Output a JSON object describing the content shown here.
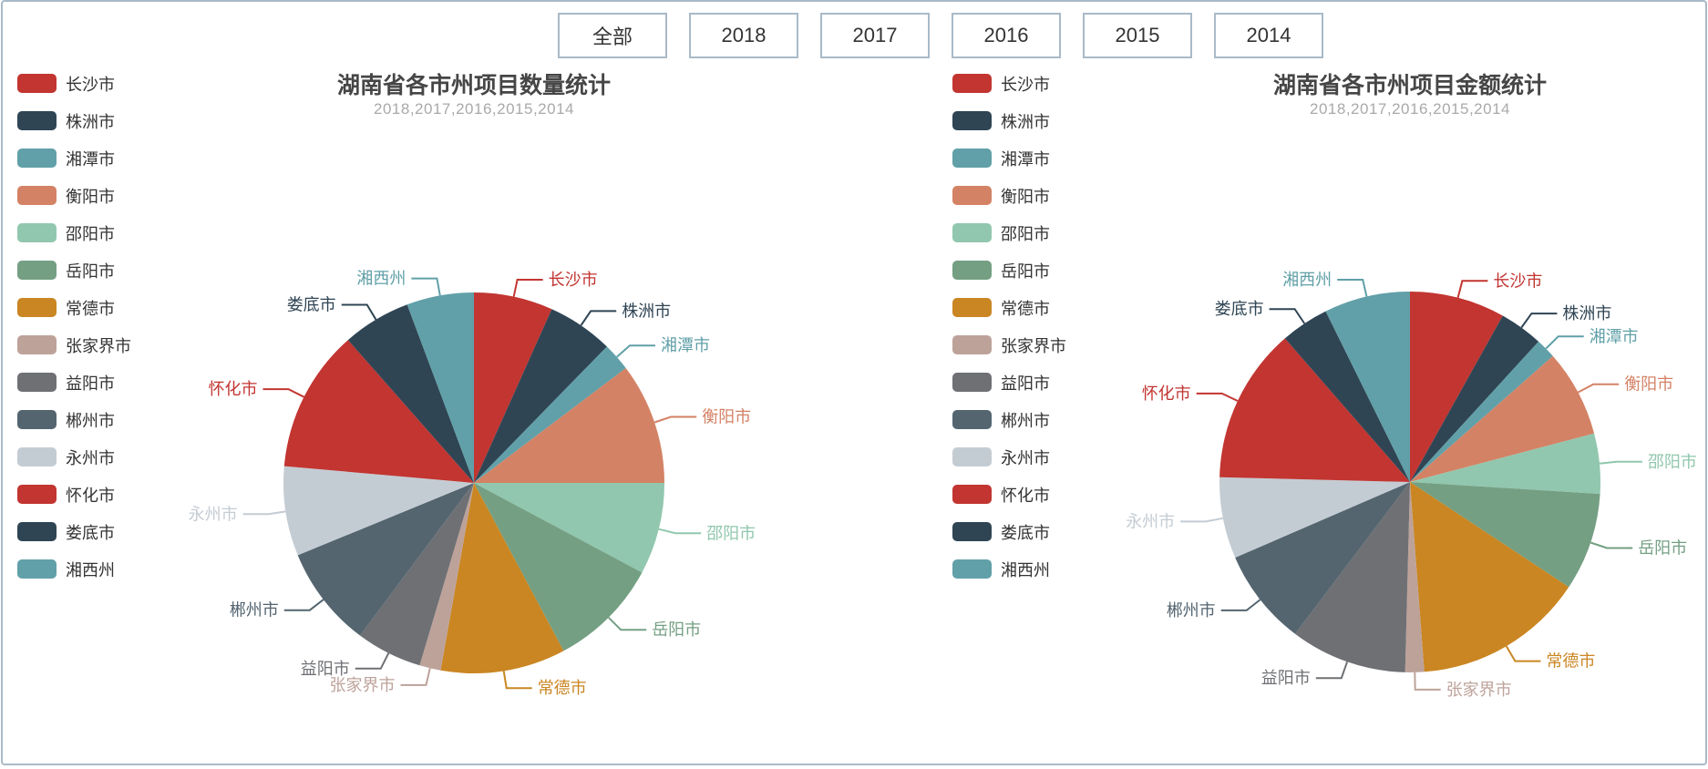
{
  "page": {
    "background": "#ffffff",
    "frame_border_color": "#a9bac8"
  },
  "filters": {
    "buttons": [
      {
        "label": "全部"
      },
      {
        "label": "2018"
      },
      {
        "label": "2017"
      },
      {
        "label": "2016"
      },
      {
        "label": "2015"
      },
      {
        "label": "2014"
      }
    ]
  },
  "legend": {
    "items": [
      "长沙市",
      "株洲市",
      "湘潭市",
      "衡阳市",
      "邵阳市",
      "岳阳市",
      "常德市",
      "张家界市",
      "益阳市",
      "郴州市",
      "永州市",
      "怀化市",
      "娄底市",
      "湘西州"
    ]
  },
  "palette": [
    "#c23531",
    "#2f4554",
    "#61a0a8",
    "#d48265",
    "#91c7ae",
    "#749f83",
    "#ca8622",
    "#bda29a",
    "#6e7074",
    "#546570",
    "#c4ccd3",
    "#c23531",
    "#2f4554",
    "#61a0a8"
  ],
  "chart_data": [
    {
      "type": "pie",
      "title": "湖南省各市州项目数量统计",
      "subtitle": "2018,2017,2016,2015,2014",
      "legend_position": "left",
      "labels_position": "outside-callout",
      "categories": [
        "长沙市",
        "株洲市",
        "湘潭市",
        "衡阳市",
        "邵阳市",
        "岳阳市",
        "常德市",
        "张家界市",
        "益阳市",
        "郴州市",
        "永州市",
        "怀化市",
        "娄底市",
        "湘西州"
      ],
      "values": [
        6.7,
        5.6,
        2.4,
        10.3,
        7.8,
        9.4,
        10.6,
        1.8,
        5.6,
        8.6,
        7.6,
        12.1,
        5.8,
        5.7
      ],
      "unit": "percent-share-estimated",
      "colors": [
        "#c23531",
        "#2f4554",
        "#61a0a8",
        "#d48265",
        "#91c7ae",
        "#749f83",
        "#ca8622",
        "#bda29a",
        "#6e7074",
        "#546570",
        "#c4ccd3",
        "#c23531",
        "#2f4554",
        "#61a0a8"
      ]
    },
    {
      "type": "pie",
      "title": "湖南省各市州项目金额统计",
      "subtitle": "2018,2017,2016,2015,2014",
      "legend_position": "left",
      "labels_position": "outside-callout",
      "categories": [
        "长沙市",
        "株洲市",
        "湘潭市",
        "衡阳市",
        "邵阳市",
        "岳阳市",
        "常德市",
        "张家界市",
        "益阳市",
        "郴州市",
        "永州市",
        "怀化市",
        "娄底市",
        "湘西州"
      ],
      "values": [
        8.1,
        3.7,
        1.7,
        7.4,
        5.1,
        8.3,
        14.5,
        1.6,
        9.9,
        8.2,
        6.9,
        13.2,
        4.1,
        7.3
      ],
      "unit": "percent-share-estimated",
      "colors": [
        "#c23531",
        "#2f4554",
        "#61a0a8",
        "#d48265",
        "#91c7ae",
        "#749f83",
        "#ca8622",
        "#bda29a",
        "#6e7074",
        "#546570",
        "#c4ccd3",
        "#c23531",
        "#2f4554",
        "#61a0a8"
      ]
    }
  ]
}
